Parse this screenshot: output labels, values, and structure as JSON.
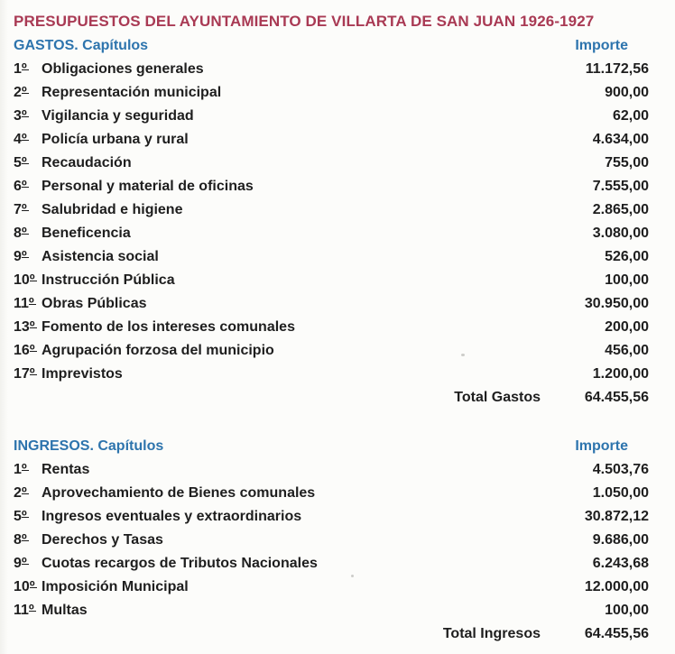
{
  "page": {
    "title": "PRESUPUESTOS DEL AYUNTAMIENTO DE VILLARTA DE SAN JUAN 1926-1927",
    "ordinal_suffix": "º",
    "colors": {
      "title": "#a93a54",
      "heading": "#2d74ad",
      "text": "#1e1e1e",
      "background": "#fcfcfa"
    }
  },
  "sections": {
    "gastos": {
      "heading": "GASTOS. Capítulos",
      "amount_header": "Importe",
      "rows": [
        {
          "num": "1",
          "label": "Obligaciones generales",
          "amount": "11.172,56"
        },
        {
          "num": "2",
          "label": "Representación municipal",
          "amount": "900,00"
        },
        {
          "num": "3",
          "label": "Vigilancia y seguridad",
          "amount": "62,00"
        },
        {
          "num": "4",
          "label": "Policía urbana y rural",
          "amount": "4.634,00"
        },
        {
          "num": "5",
          "label": "Recaudación",
          "amount": "755,00"
        },
        {
          "num": "6",
          "label": "Personal y material de oficinas",
          "amount": "7.555,00"
        },
        {
          "num": "7",
          "label": "Salubridad e higiene",
          "amount": "2.865,00"
        },
        {
          "num": "8",
          "label": "Beneficencia",
          "amount": "3.080,00"
        },
        {
          "num": "9",
          "label": "Asistencia social",
          "amount": "526,00"
        },
        {
          "num": "10",
          "label": "Instrucción Pública",
          "amount": "100,00"
        },
        {
          "num": "11",
          "label": "Obras Públicas",
          "amount": "30.950,00"
        },
        {
          "num": "13",
          "label": "Fomento de los intereses comunales",
          "amount": "200,00"
        },
        {
          "num": "16",
          "label": "Agrupación forzosa del municipio",
          "amount": "456,00"
        },
        {
          "num": "17",
          "label": "Imprevistos",
          "amount": "1.200,00"
        }
      ],
      "total_label": "Total Gastos",
      "total_amount": "64.455,56"
    },
    "ingresos": {
      "heading": "INGRESOS. Capítulos",
      "amount_header": "Importe",
      "rows": [
        {
          "num": "1",
          "label": "Rentas",
          "amount": "4.503,76"
        },
        {
          "num": "2",
          "label": "Aprovechamiento de Bienes comunales",
          "amount": "1.050,00"
        },
        {
          "num": "5",
          "label": "Ingresos eventuales y extraordinarios",
          "amount": "30.872,12"
        },
        {
          "num": "8",
          "label": "Derechos y Tasas",
          "amount": "9.686,00"
        },
        {
          "num": "9",
          "label": "Cuotas recargos de Tributos Nacionales",
          "amount": "6.243,68"
        },
        {
          "num": "10",
          "label": "Imposición Municipal",
          "amount": "12.000,00"
        },
        {
          "num": "11",
          "label": "Multas",
          "amount": "100,00"
        }
      ],
      "total_label": "Total Ingresos",
      "total_amount": "64.455,56"
    }
  }
}
